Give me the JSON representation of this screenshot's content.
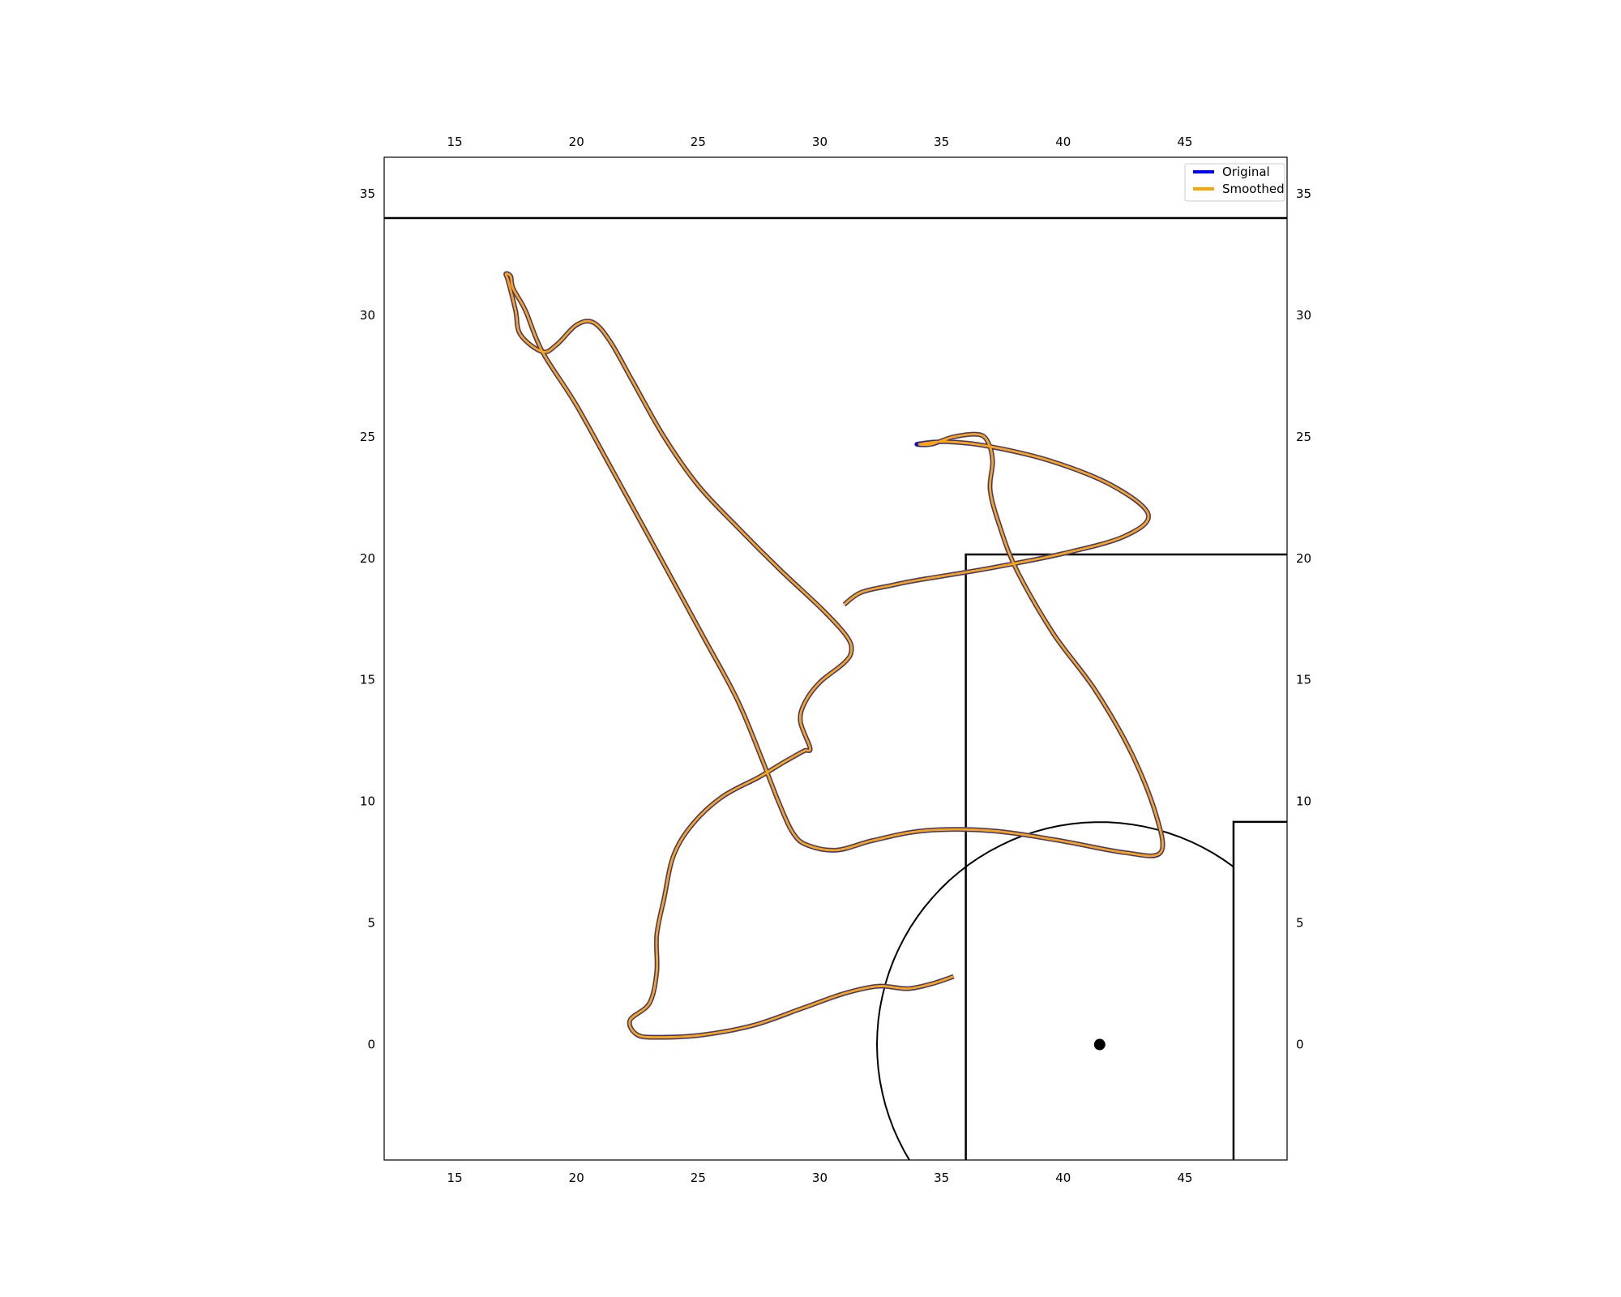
{
  "chart_data": {
    "type": "line",
    "title": "",
    "xlabel": "",
    "ylabel": "",
    "xlim": [
      12.1,
      49.2
    ],
    "ylim": [
      -4.75,
      36.5
    ],
    "x_ticks": [
      15,
      20,
      25,
      30,
      35,
      40,
      45
    ],
    "y_ticks": [
      0,
      5,
      10,
      15,
      20,
      25,
      30,
      35
    ],
    "tick_label_sides": [
      "top",
      "bottom",
      "left",
      "right"
    ],
    "grid": false,
    "legend": {
      "position": "top-right",
      "entries": [
        {
          "label": "Original",
          "color": "#0000ff"
        },
        {
          "label": "Smoothed",
          "color": "#ffa500"
        }
      ]
    },
    "pitch": {
      "touchline_y": 34,
      "penalty_area": {
        "x_from": 36,
        "y_from": -4.75,
        "y_to": 20.16
      },
      "goal_area": {
        "x_from": 47,
        "y_from": -4.75,
        "y_to": 9.16
      },
      "penalty_spot": {
        "x": 41.5,
        "y": 0
      },
      "penalty_arc": {
        "cx": 41.5,
        "cy": 0,
        "r": 9.15
      },
      "line_color": "#000000"
    },
    "series": [
      {
        "name": "Original",
        "color": "#0000ff",
        "x": [
          35.5,
          34.6,
          33.6,
          32.4,
          31.0,
          29.3,
          27.3,
          25.2,
          23.4,
          22.5,
          22.2,
          23.0,
          23.3,
          23.3,
          23.6,
          24.0,
          24.8,
          26.0,
          27.5,
          28.5,
          29.2,
          29.4,
          29.6,
          29.2,
          29.4,
          30.0,
          31.0,
          31.3,
          31.1,
          30.1,
          28.4,
          26.6,
          25.0,
          23.6,
          22.3,
          21.4,
          20.7,
          20.0,
          19.2,
          18.6,
          17.7,
          17.5,
          17.2,
          17.1,
          17.3,
          17.4,
          17.9,
          18.6,
          20.0,
          21.6,
          23.3,
          25.2,
          26.6,
          27.6,
          28.3,
          28.9,
          29.5,
          30.7,
          32.2,
          34.3,
          37.0,
          39.8,
          42.5,
          44.0,
          43.8,
          42.8,
          41.3,
          39.6,
          38.1,
          37.4,
          37.0,
          37.1,
          36.9,
          36.5,
          35.5,
          34.6,
          34.0,
          35.2,
          37.0,
          39.5,
          42.0,
          43.5,
          42.5,
          40.0,
          37.0,
          34.0,
          33.0,
          31.7,
          31.0
        ],
        "y": [
          2.8,
          2.5,
          2.3,
          2.4,
          2.1,
          1.5,
          0.8,
          0.4,
          0.3,
          0.4,
          1.0,
          1.7,
          3.0,
          4.5,
          6.0,
          7.8,
          9.1,
          10.2,
          11.0,
          11.6,
          12.0,
          12.1,
          12.2,
          13.3,
          14.1,
          14.9,
          15.7,
          16.2,
          16.8,
          17.9,
          19.5,
          21.3,
          23.0,
          25.0,
          27.3,
          28.9,
          29.7,
          29.6,
          28.8,
          28.5,
          29.2,
          30.2,
          31.4,
          31.7,
          31.6,
          31.1,
          30.2,
          28.5,
          26.3,
          23.4,
          20.3,
          16.8,
          14.2,
          11.8,
          10.0,
          8.7,
          8.2,
          8.0,
          8.4,
          8.8,
          8.8,
          8.4,
          7.9,
          7.9,
          9.5,
          12.0,
          14.6,
          16.9,
          19.5,
          21.3,
          22.8,
          24.0,
          24.8,
          25.1,
          25.0,
          24.7,
          24.7,
          24.8,
          24.6,
          24.0,
          23.0,
          21.8,
          20.9,
          20.2,
          19.6,
          19.1,
          18.9,
          18.6,
          18.1
        ]
      },
      {
        "name": "Smoothed",
        "color": "#ffa500",
        "x": [
          35.5,
          34.6,
          33.6,
          32.4,
          31.0,
          29.3,
          27.3,
          25.2,
          23.4,
          22.5,
          22.2,
          23.0,
          23.3,
          23.3,
          23.6,
          24.0,
          24.8,
          26.0,
          27.5,
          28.5,
          29.2,
          29.4,
          29.6,
          29.2,
          29.4,
          30.0,
          31.0,
          31.3,
          31.1,
          30.1,
          28.4,
          26.6,
          25.0,
          23.6,
          22.3,
          21.4,
          20.7,
          20.0,
          19.2,
          18.6,
          17.7,
          17.5,
          17.2,
          17.1,
          17.3,
          17.4,
          17.9,
          18.6,
          20.0,
          21.6,
          23.3,
          25.2,
          26.6,
          27.6,
          28.3,
          28.9,
          29.5,
          30.7,
          32.2,
          34.3,
          37.0,
          39.8,
          42.5,
          44.0,
          43.8,
          42.8,
          41.3,
          39.6,
          38.1,
          37.4,
          37.0,
          37.1,
          36.9,
          36.5,
          35.5,
          34.6,
          34.1,
          35.2,
          37.0,
          39.5,
          42.0,
          43.5,
          42.5,
          40.0,
          37.0,
          34.0,
          33.0,
          31.7,
          31.0
        ],
        "y": [
          2.8,
          2.5,
          2.3,
          2.4,
          2.1,
          1.5,
          0.8,
          0.4,
          0.3,
          0.4,
          1.0,
          1.7,
          3.0,
          4.5,
          6.0,
          7.8,
          9.1,
          10.2,
          11.0,
          11.6,
          12.0,
          12.1,
          12.2,
          13.3,
          14.1,
          14.9,
          15.7,
          16.2,
          16.8,
          17.9,
          19.5,
          21.3,
          23.0,
          25.0,
          27.3,
          28.9,
          29.7,
          29.6,
          28.8,
          28.5,
          29.2,
          30.2,
          31.4,
          31.7,
          31.6,
          31.1,
          30.2,
          28.5,
          26.3,
          23.4,
          20.3,
          16.8,
          14.2,
          11.8,
          10.0,
          8.7,
          8.2,
          8.0,
          8.4,
          8.8,
          8.8,
          8.4,
          7.9,
          7.9,
          9.5,
          12.0,
          14.6,
          16.9,
          19.5,
          21.3,
          22.8,
          24.0,
          24.8,
          25.1,
          25.0,
          24.7,
          24.7,
          24.8,
          24.6,
          24.0,
          23.0,
          21.8,
          20.9,
          20.2,
          19.6,
          19.1,
          18.9,
          18.6,
          18.1
        ]
      }
    ]
  }
}
